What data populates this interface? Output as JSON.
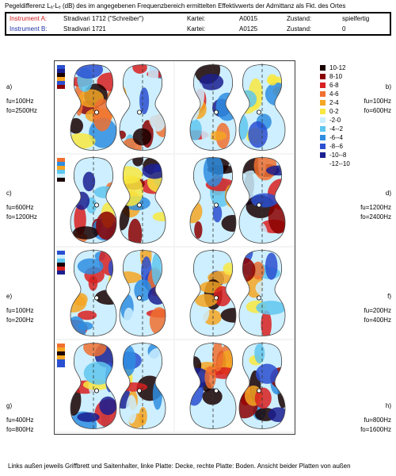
{
  "header": {
    "title": "Pegeldifferenz Lₐ-Lₑ (dB) des im angegebenen Frequenzbereich ermittelten Effektivwerts der Admittanz als Fkt. des Ortes",
    "rows": [
      {
        "label": "Instrument A:",
        "name": "Stradivari 1712 (\"Schreiber\")",
        "kartei_label": "Kartei:",
        "kartei": "A0015",
        "zustand_label": "Zustand:",
        "zustand": "spielfertig"
      },
      {
        "label": "Instrument B:",
        "name": "Stradivari 1721",
        "kartei_label": "Kartei:",
        "kartei": "A0125",
        "zustand_label": "Zustand:",
        "zustand": "0"
      }
    ]
  },
  "colors": {
    "instrument_a": "#d42020",
    "instrument_b": "#1f2fa8"
  },
  "legend": [
    {
      "label": "10-12",
      "color": "#1a0000"
    },
    {
      "label": "8-10",
      "color": "#8b0000"
    },
    {
      "label": "6-8",
      "color": "#d92020"
    },
    {
      "label": "4-6",
      "color": "#f07030"
    },
    {
      "label": "2-4",
      "color": "#f5a623"
    },
    {
      "label": "0-2",
      "color": "#f8e840"
    },
    {
      "label": "-2-0",
      "color": "#cdefff"
    },
    {
      "label": "-4--2",
      "color": "#5fc6ef"
    },
    {
      "label": "-6--4",
      "color": "#2e8de0"
    },
    {
      "label": "-8--6",
      "color": "#2a4fd0"
    },
    {
      "label": "-10--8",
      "color": "#1a1f90"
    },
    {
      "label": "-12--10",
      "color": ""
    }
  ],
  "panels": [
    {
      "letter": "a)",
      "fu": "fu=100Hz",
      "fo": "fo=2500Hz"
    },
    {
      "letter": "b)",
      "fu": "fu=100Hz",
      "fo": "fo=600Hz"
    },
    {
      "letter": "c)",
      "fu": "fu=600Hz",
      "fo": "fo=1200Hz"
    },
    {
      "letter": "d)",
      "fu": "fu=1200Hz",
      "fo": "fo=2400Hz"
    },
    {
      "letter": "e)",
      "fu": "fu=100Hz",
      "fo": "fo=200Hz"
    },
    {
      "letter": "f)",
      "fu": "fu=200Hz",
      "fo": "fo=400Hz"
    },
    {
      "letter": "g)",
      "fu": "fu=400Hz",
      "fo": "fo=800Hz"
    },
    {
      "letter": "h)",
      "fu": "fu=800Hz",
      "fo": "fo=1600Hz"
    }
  ],
  "footer": "Links außen jeweils Griffbrett und Saitenhalter, linke Platte: Decke, rechte Platte: Boden. Ansicht beider Platten von außen"
}
